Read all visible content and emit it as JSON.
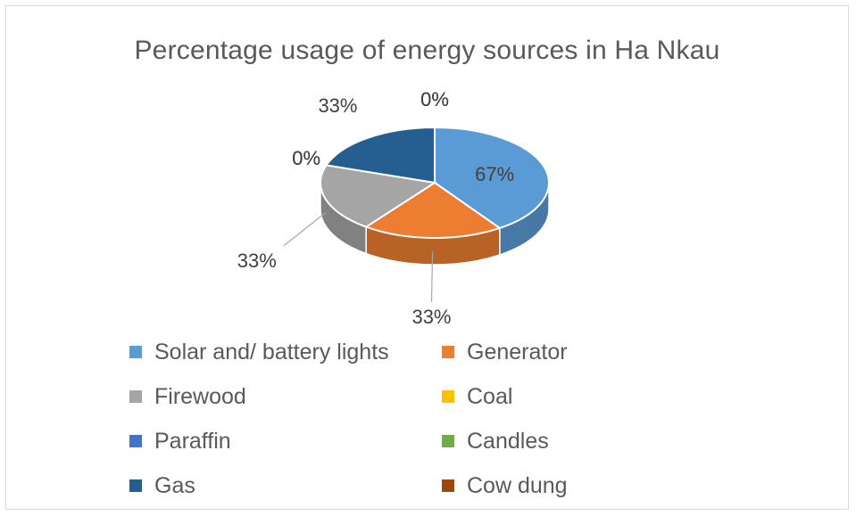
{
  "chart_data": {
    "type": "pie",
    "title": "Percentage usage of energy sources in Ha Nkau",
    "categories": [
      "Solar and/ battery lights",
      "Generator",
      "Firewood",
      "Coal",
      "Paraffin",
      "Candles",
      "Gas",
      "Cow dung"
    ],
    "values": [
      67,
      33,
      33,
      0,
      0,
      0,
      33,
      0
    ],
    "labels": [
      "67%",
      "33%",
      "33%",
      "0%",
      "0%",
      "0%",
      "33%",
      "0%"
    ],
    "colors": [
      "#5B9BD5",
      "#ED7D31",
      "#A5A5A5",
      "#FFC000",
      "#4472C4",
      "#70AD47",
      "#255E91",
      "#9E480E"
    ],
    "legend_position": "bottom",
    "style": "3d-pie"
  },
  "legend": {
    "items": [
      {
        "label": "Solar and/ battery lights",
        "color": "#5B9BD5"
      },
      {
        "label": "Generator",
        "color": "#ED7D31"
      },
      {
        "label": "Firewood",
        "color": "#A5A5A5"
      },
      {
        "label": "Coal",
        "color": "#FFC000"
      },
      {
        "label": "Paraffin",
        "color": "#4472C4"
      },
      {
        "label": "Candles",
        "color": "#70AD47"
      },
      {
        "label": "Gas",
        "color": "#255E91"
      },
      {
        "label": "Cow dung",
        "color": "#9E480E"
      }
    ]
  }
}
